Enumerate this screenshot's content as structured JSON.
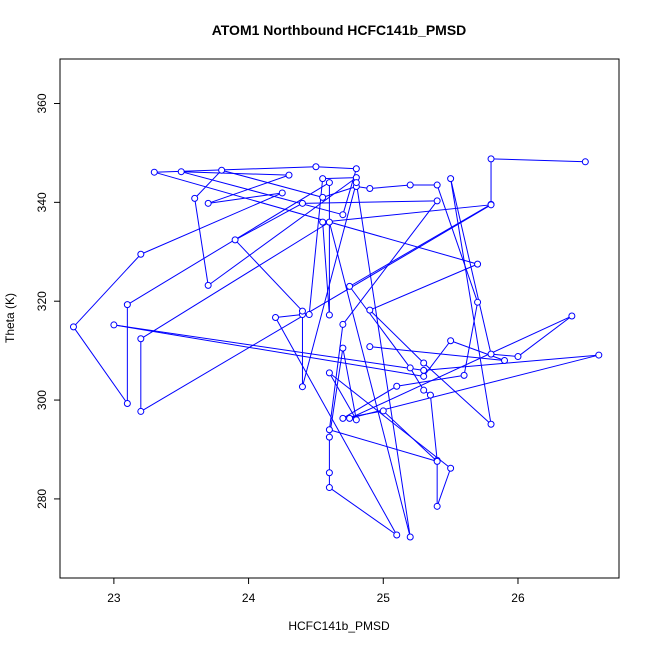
{
  "chart_data": {
    "type": "scatter",
    "title": "ATOM1 Northbound HCFC141b_PMSD",
    "xlabel": "HCFC141b_PMSD",
    "ylabel": "Theta (K)",
    "xlim": [
      22.6,
      26.75
    ],
    "ylim": [
      264,
      369
    ],
    "x_ticks": [
      23,
      24,
      25,
      26
    ],
    "x_tick_labels": [
      "23",
      "24",
      "25",
      "26"
    ],
    "y_ticks": [
      280,
      300,
      320,
      340,
      360
    ],
    "y_tick_labels": [
      "280",
      "300",
      "320",
      "340",
      "360"
    ],
    "style": "points-connected",
    "color": "#0000ff",
    "grid": false,
    "points": [
      [
        26.5,
        348.2
      ],
      [
        25.8,
        348.8
      ],
      [
        25.8,
        339.6
      ],
      [
        24.75,
        323.0
      ],
      [
        25.2,
        306.5
      ],
      [
        25.3,
        302.0
      ],
      [
        25.35,
        301.0
      ],
      [
        25.4,
        287.8
      ],
      [
        25.4,
        278.5
      ],
      [
        25.5,
        286.2
      ],
      [
        24.6,
        305.5
      ],
      [
        24.8,
        296.0
      ],
      [
        24.7,
        310.5
      ],
      [
        24.6,
        292.5
      ],
      [
        24.6,
        285.3
      ],
      [
        24.6,
        282.3
      ],
      [
        25.1,
        272.7
      ],
      [
        24.2,
        316.7
      ],
      [
        24.4,
        317.3
      ],
      [
        24.45,
        317.3
      ],
      [
        24.55,
        344.8
      ],
      [
        24.8,
        345.0
      ],
      [
        23.7,
        323.2
      ],
      [
        23.6,
        340.8
      ],
      [
        23.8,
        346.5
      ],
      [
        24.55,
        341.0
      ],
      [
        24.8,
        343.2
      ],
      [
        24.9,
        342.8
      ],
      [
        25.2,
        343.5
      ],
      [
        25.4,
        343.5
      ],
      [
        25.7,
        319.8
      ],
      [
        25.6,
        305.0
      ],
      [
        25.1,
        302.8
      ],
      [
        24.7,
        296.3
      ],
      [
        25.0,
        297.8
      ],
      [
        25.4,
        287.6
      ],
      [
        24.6,
        294.0
      ],
      [
        24.7,
        315.3
      ],
      [
        25.4,
        340.3
      ],
      [
        24.4,
        339.8
      ],
      [
        23.9,
        332.4
      ],
      [
        24.4,
        318.0
      ],
      [
        24.4,
        302.7
      ],
      [
        24.8,
        344.0
      ],
      [
        25.2,
        272.3
      ],
      [
        24.6,
        336.0
      ],
      [
        23.2,
        312.4
      ],
      [
        23.2,
        297.7
      ],
      [
        25.8,
        339.5
      ],
      [
        24.55,
        336.0
      ],
      [
        24.6,
        317.2
      ],
      [
        24.6,
        344.0
      ],
      [
        23.1,
        319.3
      ],
      [
        23.1,
        299.3
      ],
      [
        22.7,
        314.8
      ],
      [
        23.2,
        329.5
      ],
      [
        24.25,
        341.9
      ],
      [
        23.7,
        339.8
      ],
      [
        24.3,
        345.5
      ],
      [
        23.5,
        346.2
      ],
      [
        24.7,
        337.5
      ],
      [
        24.8,
        346.8
      ],
      [
        24.5,
        347.2
      ],
      [
        23.3,
        346.1
      ],
      [
        25.7,
        327.5
      ],
      [
        24.9,
        318.2
      ],
      [
        25.3,
        307.5
      ],
      [
        25.8,
        295.1
      ],
      [
        25.5,
        344.8
      ],
      [
        25.8,
        309.3
      ],
      [
        26.0,
        308.8
      ],
      [
        26.4,
        317.0
      ],
      [
        24.75,
        296.3
      ],
      [
        26.6,
        309.1
      ],
      [
        25.3,
        306.0
      ],
      [
        23.0,
        315.2
      ],
      [
        25.3,
        304.8
      ],
      [
        25.5,
        312.0
      ],
      [
        25.9,
        308.0
      ],
      [
        24.9,
        310.8
      ]
    ]
  }
}
